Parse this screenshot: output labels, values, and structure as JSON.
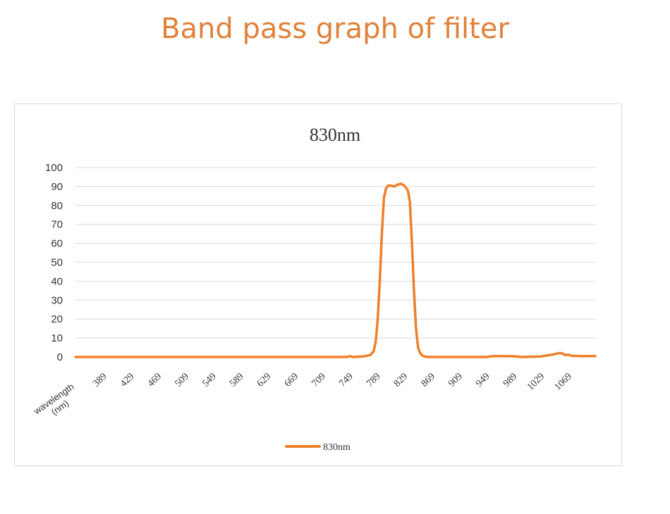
{
  "page_title": "Band pass graph of filter",
  "colors": {
    "title": "#E0813B",
    "series": "#F07F2A",
    "grid": "#d9d9d9",
    "text": "#333333"
  },
  "chart_data": {
    "type": "line",
    "title": "830nm",
    "xlabel": "wavelength\n(nm)",
    "ylabel": "",
    "x_range": [
      349,
      1109
    ],
    "ylim": [
      0,
      100
    ],
    "y_ticks": [
      0,
      10,
      20,
      30,
      40,
      50,
      60,
      70,
      80,
      90,
      100
    ],
    "x_ticks": [
      389,
      429,
      469,
      509,
      549,
      589,
      629,
      669,
      709,
      749,
      789,
      829,
      869,
      909,
      949,
      989,
      1029,
      1069
    ],
    "grid": true,
    "legend_position": "bottom",
    "series": [
      {
        "name": "830nm",
        "x": [
          349,
          700,
          745,
          750,
          755,
          770,
          780,
          785,
          788,
          791,
          794,
          797,
          800,
          803,
          806,
          810,
          815,
          820,
          825,
          830,
          835,
          838,
          841,
          844,
          847,
          850,
          853,
          856,
          860,
          865,
          870,
          900,
          950,
          960,
          990,
          1000,
          1030,
          1050,
          1055,
          1060,
          1065,
          1070,
          1075,
          1090,
          1109
        ],
        "y": [
          0,
          0,
          0,
          0.4,
          0,
          0.3,
          1,
          3,
          8,
          20,
          40,
          65,
          84,
          89,
          90.5,
          90.5,
          90,
          91,
          91.5,
          90.5,
          88,
          82,
          60,
          35,
          15,
          5,
          2,
          0.8,
          0.2,
          0,
          0,
          0,
          0,
          0.5,
          0.4,
          0,
          0.3,
          1.5,
          2,
          2,
          1,
          1.2,
          0.6,
          0.5,
          0.5
        ]
      }
    ]
  }
}
